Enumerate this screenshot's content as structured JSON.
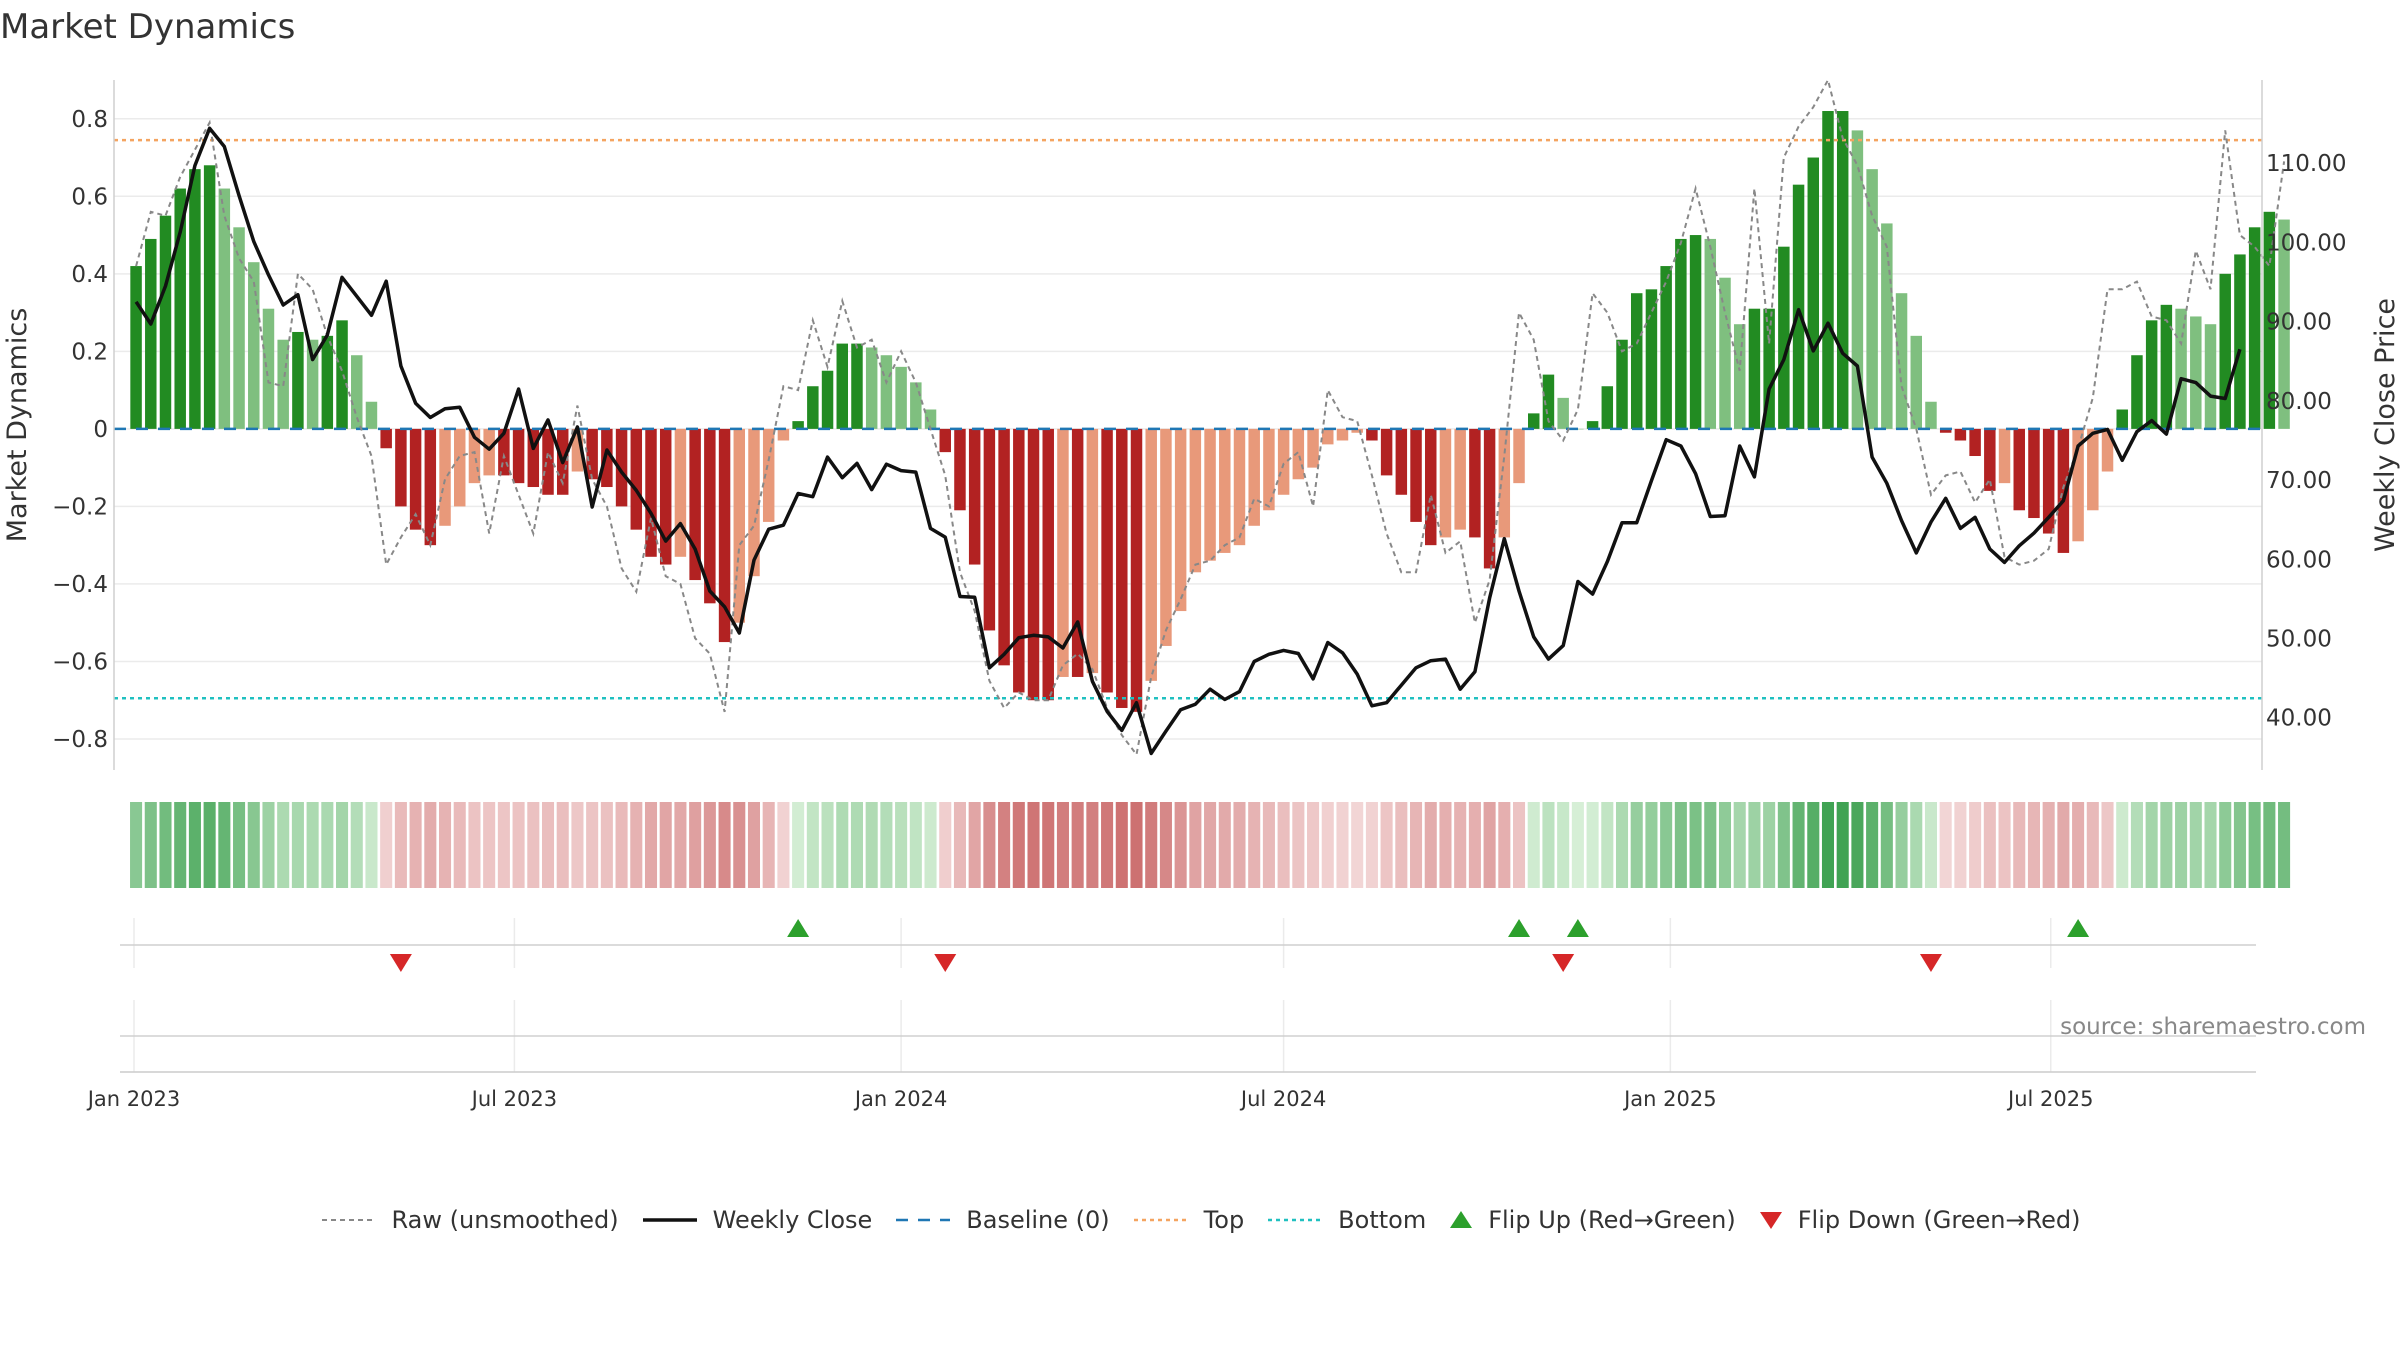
{
  "chart_data": {
    "type": "bar",
    "title": "Market Dynamics",
    "ylabel_left": "Market Dynamics",
    "ylabel_right": "Weekly Close Price",
    "source": "source: sharemaestro.com",
    "x_ticks": [
      "Jan 2023",
      "Jul 2023",
      "Jan 2024",
      "Jul 2024",
      "Jan 2025",
      "Jul 2025"
    ],
    "y_left_ticks": [
      "0.8",
      "0.6",
      "0.4",
      "0.2",
      "0",
      "−0.2",
      "−0.4",
      "−0.6",
      "−0.8"
    ],
    "y_right_ticks": [
      "110.00",
      "100.00",
      "90.00",
      "80.00",
      "70.00",
      "60.00",
      "50.00",
      "40.00"
    ],
    "y_left_range": [
      -0.88,
      0.9
    ],
    "y_right_range": [
      33.4,
      120.5
    ],
    "x_range_weeks": [
      -1.5,
      144.5
    ],
    "top_level": 0.745,
    "bottom_level": -0.695,
    "baseline": 0,
    "start_week_date": "2023-01-02",
    "dynamics": [
      0.42,
      0.49,
      0.55,
      0.62,
      0.67,
      0.68,
      0.62,
      0.52,
      0.43,
      0.31,
      0.23,
      0.25,
      0.23,
      0.24,
      0.28,
      0.19,
      0.07,
      -0.05,
      -0.2,
      -0.26,
      -0.3,
      -0.25,
      -0.2,
      -0.14,
      -0.12,
      -0.12,
      -0.14,
      -0.15,
      -0.17,
      -0.17,
      -0.11,
      -0.13,
      -0.15,
      -0.2,
      -0.26,
      -0.33,
      -0.35,
      -0.33,
      -0.39,
      -0.45,
      -0.55,
      -0.5,
      -0.38,
      -0.24,
      -0.03,
      0.02,
      0.11,
      0.15,
      0.22,
      0.22,
      0.21,
      0.19,
      0.16,
      0.12,
      0.05,
      -0.06,
      -0.21,
      -0.35,
      -0.52,
      -0.61,
      -0.68,
      -0.7,
      -0.7,
      -0.64,
      -0.64,
      -0.63,
      -0.68,
      -0.72,
      -0.73,
      -0.65,
      -0.56,
      -0.47,
      -0.37,
      -0.34,
      -0.32,
      -0.3,
      -0.25,
      -0.21,
      -0.17,
      -0.13,
      -0.1,
      -0.04,
      -0.03,
      -0.01,
      -0.03,
      -0.12,
      -0.17,
      -0.24,
      -0.3,
      -0.28,
      -0.26,
      -0.28,
      -0.36,
      -0.28,
      -0.14,
      0.04,
      0.14,
      0.08,
      0.0,
      0.02,
      0.11,
      0.23,
      0.35,
      0.36,
      0.42,
      0.49,
      0.5,
      0.49,
      0.39,
      0.27,
      0.31,
      0.31,
      0.47,
      0.63,
      0.7,
      0.82,
      0.82,
      0.77,
      0.67,
      0.53,
      0.35,
      0.24,
      0.07,
      -0.01,
      -0.03,
      -0.07,
      -0.16,
      -0.14,
      -0.21,
      -0.23,
      -0.27,
      -0.32,
      -0.29,
      -0.21,
      -0.11,
      0.05,
      0.19,
      0.28,
      0.32,
      0.31,
      0.29,
      0.27,
      0.4,
      0.45,
      0.52,
      0.56,
      0.54
    ],
    "raw": [
      0.42,
      0.56,
      0.55,
      0.65,
      0.72,
      0.79,
      0.55,
      0.44,
      0.38,
      0.12,
      0.11,
      0.4,
      0.36,
      0.24,
      0.15,
      0.03,
      -0.07,
      -0.35,
      -0.28,
      -0.22,
      -0.3,
      -0.13,
      -0.07,
      -0.06,
      -0.27,
      -0.07,
      -0.17,
      -0.27,
      -0.06,
      -0.14,
      0.06,
      -0.13,
      -0.2,
      -0.36,
      -0.42,
      -0.23,
      -0.38,
      -0.4,
      -0.54,
      -0.58,
      -0.73,
      -0.3,
      -0.25,
      -0.08,
      0.11,
      0.1,
      0.28,
      0.16,
      0.33,
      0.21,
      0.23,
      0.12,
      0.2,
      0.12,
      0.0,
      -0.12,
      -0.37,
      -0.47,
      -0.65,
      -0.72,
      -0.68,
      -0.7,
      -0.7,
      -0.61,
      -0.58,
      -0.62,
      -0.72,
      -0.79,
      -0.84,
      -0.64,
      -0.52,
      -0.44,
      -0.35,
      -0.34,
      -0.3,
      -0.28,
      -0.18,
      -0.2,
      -0.09,
      -0.06,
      -0.2,
      0.1,
      0.03,
      0.02,
      -0.12,
      -0.27,
      -0.37,
      -0.37,
      -0.17,
      -0.32,
      -0.29,
      -0.5,
      -0.39,
      -0.07,
      0.3,
      0.23,
      0.02,
      -0.03,
      0.05,
      0.35,
      0.3,
      0.2,
      0.22,
      0.3,
      0.38,
      0.48,
      0.62,
      0.47,
      0.3,
      0.15,
      0.62,
      0.22,
      0.7,
      0.78,
      0.83,
      0.9,
      0.75,
      0.68,
      0.55,
      0.47,
      0.11,
      0.0,
      -0.17,
      -0.12,
      -0.11,
      -0.19,
      -0.13,
      -0.33,
      -0.35,
      -0.34,
      -0.31,
      -0.15,
      -0.05,
      0.08,
      0.36,
      0.36,
      0.38,
      0.29,
      0.28,
      0.22,
      0.46,
      0.36,
      0.77,
      0.5,
      0.47,
      0.42,
      0.69
    ],
    "close": [
      92.5,
      89.7,
      94.5,
      101.3,
      109.7,
      114.4,
      112.1,
      105.9,
      100.1,
      95.9,
      92.1,
      93.4,
      85.2,
      88.3,
      95.6,
      93.2,
      90.8,
      95.1,
      84.4,
      79.7,
      77.9,
      79.0,
      79.2,
      75.4,
      73.9,
      75.9,
      81.5,
      74.0,
      77.6,
      72.2,
      76.7,
      66.6,
      73.8,
      71.0,
      68.7,
      65.8,
      62.3,
      64.5,
      61.3,
      56.0,
      54.0,
      50.7,
      59.9,
      63.8,
      64.3,
      68.3,
      67.9,
      72.9,
      70.3,
      72.1,
      68.8,
      72.0,
      71.2,
      71.0,
      63.9,
      62.8,
      55.3,
      55.2,
      46.3,
      48.0,
      50.1,
      50.4,
      50.2,
      48.8,
      52.1,
      44.6,
      40.8,
      38.4,
      41.9,
      35.5,
      38.3,
      41.0,
      41.7,
      43.6,
      42.3,
      43.3,
      47.1,
      48.0,
      48.5,
      48.1,
      44.9,
      49.5,
      48.2,
      45.5,
      41.5,
      41.9,
      44.1,
      46.3,
      47.2,
      47.4,
      43.6,
      45.8,
      55.1,
      62.6,
      56.0,
      50.2,
      47.4,
      49.1,
      57.2,
      55.6,
      59.7,
      64.6,
      64.6,
      69.9,
      75.1,
      74.3,
      70.8,
      65.4,
      65.5,
      74.3,
      70.4,
      81.5,
      85.2,
      91.5,
      86.3,
      89.8,
      86.0,
      84.4,
      72.9,
      69.6,
      64.9,
      60.8,
      64.7,
      67.7,
      63.9,
      65.3,
      61.3,
      59.6,
      61.7,
      63.3,
      65.3,
      67.4,
      74.3,
      75.9,
      76.4,
      72.5,
      76.1,
      77.5,
      75.8,
      82.8,
      82.3,
      80.6,
      80.3,
      86.5
    ],
    "strength_strip": [
      0.42,
      0.49,
      0.55,
      0.62,
      0.67,
      0.68,
      0.62,
      0.52,
      0.43,
      0.31,
      0.23,
      0.25,
      0.23,
      0.24,
      0.28,
      0.19,
      0.07,
      -0.05,
      -0.2,
      -0.26,
      -0.3,
      -0.25,
      -0.2,
      -0.14,
      -0.12,
      -0.12,
      -0.14,
      -0.15,
      -0.17,
      -0.17,
      -0.11,
      -0.13,
      -0.15,
      -0.2,
      -0.26,
      -0.33,
      -0.35,
      -0.33,
      -0.39,
      -0.45,
      -0.55,
      -0.5,
      -0.38,
      -0.24,
      -0.03,
      0.02,
      0.11,
      0.15,
      0.22,
      0.22,
      0.21,
      0.19,
      0.16,
      0.12,
      0.05,
      -0.06,
      -0.21,
      -0.35,
      -0.52,
      -0.61,
      -0.68,
      -0.7,
      -0.7,
      -0.64,
      -0.64,
      -0.63,
      -0.68,
      -0.72,
      -0.73,
      -0.65,
      -0.56,
      -0.47,
      -0.37,
      -0.34,
      -0.32,
      -0.3,
      -0.25,
      -0.21,
      -0.17,
      -0.13,
      -0.1,
      -0.04,
      -0.03,
      -0.01,
      -0.03,
      -0.12,
      -0.17,
      -0.24,
      -0.3,
      -0.28,
      -0.26,
      -0.28,
      -0.36,
      -0.28,
      -0.14,
      0.04,
      0.14,
      0.08,
      0.0,
      0.02,
      0.11,
      0.23,
      0.35,
      0.36,
      0.42,
      0.49,
      0.5,
      0.49,
      0.39,
      0.27,
      0.31,
      0.31,
      0.47,
      0.63,
      0.7,
      0.82,
      0.82,
      0.77,
      0.67,
      0.53,
      0.35,
      0.24,
      0.07,
      -0.01,
      -0.03,
      -0.07,
      -0.16,
      -0.14,
      -0.21,
      -0.23,
      -0.27,
      -0.32,
      -0.29,
      -0.21,
      -0.11,
      0.05,
      0.19,
      0.28,
      0.32,
      0.31,
      0.29,
      0.27,
      0.4,
      0.45,
      0.52,
      0.56,
      0.54
    ],
    "flip_up_weeks": [
      45,
      94,
      98,
      132
    ],
    "flip_down_weeks": [
      18,
      55,
      97,
      122
    ],
    "colors": {
      "strong_green": "#228b22",
      "weak_green": "#7fbf7f",
      "strong_red": "#b22222",
      "weak_red": "#e8997a",
      "close_line": "#111111",
      "raw_line": "#888888",
      "baseline": "#1f77b4",
      "top": "#f4a460",
      "bottom": "#20c0c0",
      "flip_up": "#2ca02c",
      "flip_down": "#d62728"
    },
    "legend": [
      {
        "key": "raw",
        "label": "Raw (unsmoothed)"
      },
      {
        "key": "close",
        "label": "Weekly Close"
      },
      {
        "key": "baseline",
        "label": "Baseline (0)"
      },
      {
        "key": "top",
        "label": "Top"
      },
      {
        "key": "bottom",
        "label": "Bottom"
      },
      {
        "key": "flip_up",
        "label": "Flip Up (Red→Green)"
      },
      {
        "key": "flip_down",
        "label": "Flip Down (Green→Red)"
      }
    ]
  }
}
